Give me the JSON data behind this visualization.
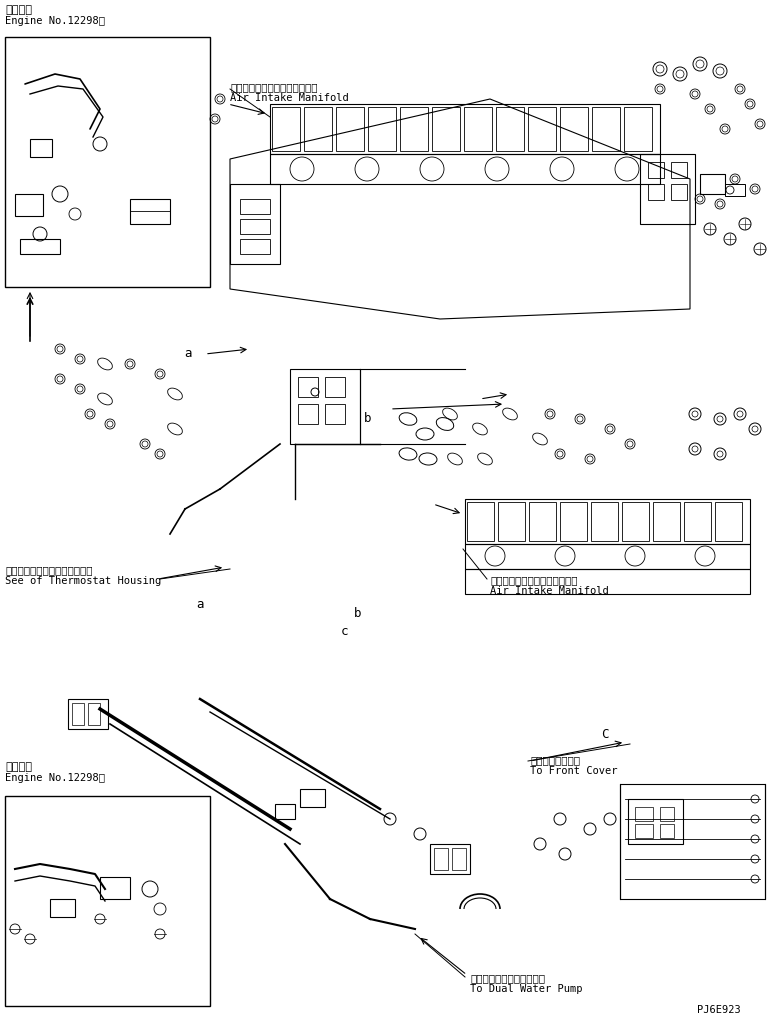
{
  "bg_color": "#ffffff",
  "line_color": "#000000",
  "title_top_line1": "適用号機",
  "title_top_line2": "Engine No.12298～",
  "label_air_intake1_jp": "エアーインテークマニホールド",
  "label_air_intake1_en": "Air Intake Manifold",
  "label_air_intake2_jp": "エアーインテークマニホールド",
  "label_air_intake2_en": "Air Intake Manifold",
  "label_thermostat_jp": "サーモスタットハウジング参照",
  "label_thermostat_en": "See of Thermostat Housing",
  "label_front_cover_jp": "フロントカバーヘ",
  "label_front_cover_en": "To Front Cover",
  "label_dual_water_jp": "デュアルウォータポンプヘ",
  "label_dual_water_en": "To Dual Water Pump",
  "title_bottom_line1": "適用号機",
  "title_bottom_line2": "Engine No.12298～",
  "part_number": "PJ6E923",
  "label_a1": "a",
  "label_a2": "a",
  "label_b1": "b",
  "label_b2": "b",
  "label_c1": "c",
  "label_C2": "C"
}
